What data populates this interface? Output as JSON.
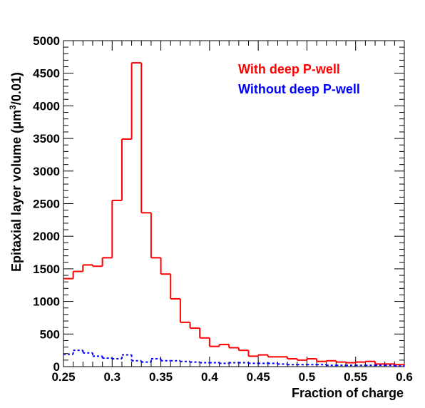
{
  "chart_data": {
    "type": "line",
    "subtype": "histogram-step",
    "xlabel": "Fraction of charge",
    "ylabel_main": "Epitaxial layer volume (",
    "ylabel_unit_pre": "μm",
    "ylabel_sup": "3",
    "ylabel_unit_post": "/0.01)",
    "xlim": [
      0.25,
      0.6
    ],
    "ylim": [
      0,
      5000
    ],
    "x_ticks": [
      "0.25",
      "0.3",
      "0.35",
      "0.4",
      "0.45",
      "0.5",
      "0.55",
      "0.6"
    ],
    "y_ticks": [
      "0",
      "500",
      "1000",
      "1500",
      "2000",
      "2500",
      "3000",
      "3500",
      "4000",
      "4500",
      "5000"
    ],
    "bin_width": 0.01,
    "legend_position": "top-right",
    "grid": false,
    "series": [
      {
        "name": "With deep P-well",
        "color": "#ff0000",
        "line_style": "solid",
        "bin_low_edges": [
          0.25,
          0.26,
          0.27,
          0.28,
          0.29,
          0.3,
          0.31,
          0.32,
          0.33,
          0.34,
          0.35,
          0.36,
          0.37,
          0.38,
          0.39,
          0.4,
          0.41,
          0.42,
          0.43,
          0.44,
          0.45,
          0.46,
          0.47,
          0.48,
          0.49,
          0.5,
          0.51,
          0.52,
          0.53,
          0.54,
          0.55,
          0.56,
          0.57,
          0.58,
          0.59
        ],
        "values": [
          1350,
          1460,
          1560,
          1540,
          1670,
          2550,
          3490,
          4660,
          2360,
          1670,
          1420,
          1040,
          680,
          590,
          440,
          310,
          340,
          290,
          250,
          160,
          180,
          150,
          150,
          120,
          100,
          120,
          80,
          90,
          70,
          60,
          70,
          80,
          40,
          40,
          30
        ]
      },
      {
        "name": "Without deep P-well",
        "color": "#0000ff",
        "line_style": "dotted",
        "bin_low_edges": [
          0.25,
          0.26,
          0.27,
          0.28,
          0.29,
          0.3,
          0.31,
          0.32,
          0.33,
          0.34,
          0.35,
          0.36,
          0.37,
          0.38,
          0.39,
          0.4,
          0.41,
          0.42,
          0.43,
          0.44,
          0.45,
          0.46,
          0.47,
          0.48,
          0.49,
          0.5,
          0.51,
          0.52,
          0.53,
          0.54,
          0.55,
          0.56,
          0.57,
          0.58,
          0.59
        ],
        "values": [
          190,
          250,
          210,
          160,
          130,
          120,
          180,
          90,
          70,
          120,
          90,
          90,
          80,
          70,
          60,
          60,
          50,
          60,
          60,
          50,
          50,
          50,
          40,
          30,
          30,
          30,
          30,
          20,
          20,
          20,
          20,
          20,
          20,
          20,
          10
        ]
      }
    ]
  }
}
